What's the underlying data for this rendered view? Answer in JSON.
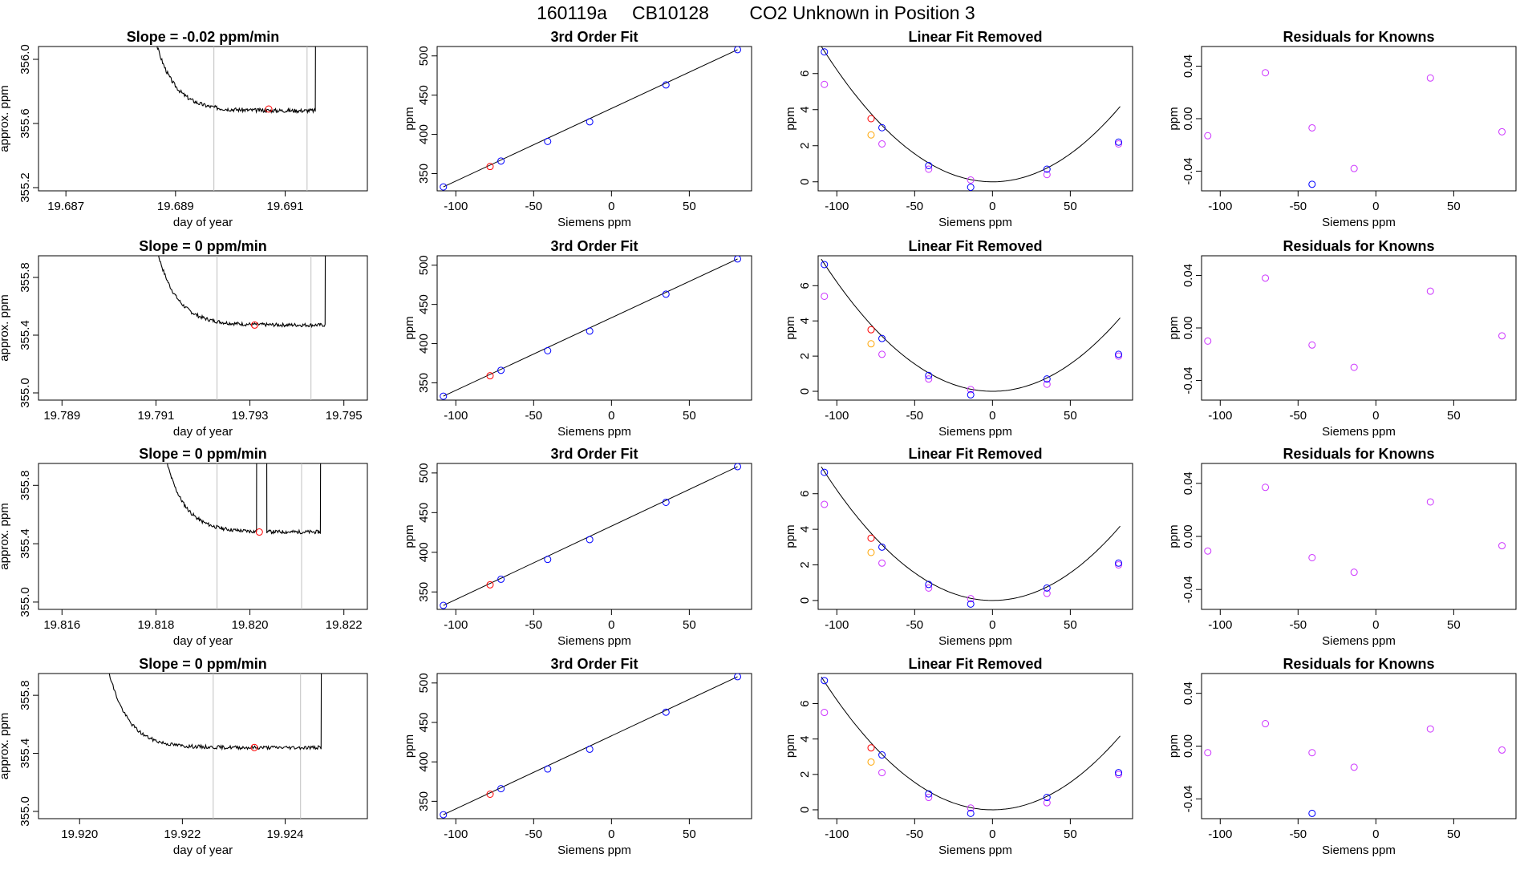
{
  "figure": {
    "title_parts": [
      "160119a",
      "CB10128",
      "CO2 Unknown in Position  3"
    ]
  },
  "chart_data": [
    {
      "type": "line",
      "row": 0,
      "panel": "trace",
      "title": "Slope =  -0.02  ppm/min",
      "xlabel": "day of year",
      "ylabel": "approx. ppm",
      "xlim": [
        19.6865,
        19.6925
      ],
      "ylim": [
        355.18,
        356.08
      ],
      "xticks": [
        19.687,
        19.689,
        19.691
      ],
      "xtick_labels": [
        "19.687",
        "19.689",
        "19.691"
      ],
      "yticks": [
        355.2,
        355.6,
        356.0
      ],
      "ytick_labels": [
        "355.2",
        "355.6",
        "356.0"
      ],
      "vlines": [
        19.6897,
        19.6914
      ],
      "marker": [
        19.6907,
        355.69
      ],
      "trace": {
        "t0": 19.68818,
        "t1": 19.69155,
        "plateau": 355.68,
        "init": 1.6,
        "tau": 0.00035,
        "final_rise": 3.5,
        "seed": 3
      }
    },
    {
      "type": "scatter",
      "row": 0,
      "panel": "fit",
      "title": "3rd Order Fit",
      "xlabel": "Siemens ppm",
      "ylabel": "ppm",
      "xlim": [
        -112,
        90
      ],
      "ylim": [
        328,
        512
      ],
      "xticks": [
        -100,
        -50,
        0,
        50
      ],
      "xtick_labels": [
        "-100",
        "-50",
        "0",
        "50"
      ],
      "yticks": [
        350,
        400,
        450,
        500
      ],
      "ytick_labels": [
        "350",
        "400",
        "450",
        "500"
      ],
      "knowns": {
        "x": [
          -108,
          -71,
          -41,
          -14,
          35,
          81
        ],
        "y": [
          333,
          366,
          391,
          416,
          463,
          508
        ]
      },
      "unknown": {
        "x": [
          -78
        ],
        "y": [
          359
        ]
      },
      "line": [
        [
          -108,
          333
        ],
        [
          81,
          508
        ]
      ]
    },
    {
      "type": "scatter",
      "row": 0,
      "panel": "linear_removed",
      "title": "Linear Fit Removed",
      "xlabel": "Siemens ppm",
      "ylabel": "ppm",
      "xlim": [
        -112,
        90
      ],
      "ylim": [
        -0.5,
        7.5
      ],
      "xticks": [
        -100,
        -50,
        0,
        50
      ],
      "xtick_labels": [
        "-100",
        "-50",
        "0",
        "50"
      ],
      "yticks": [
        0,
        2,
        4,
        6
      ],
      "ytick_labels": [
        "0",
        "2",
        "4",
        "6"
      ],
      "blue": {
        "x": [
          -108,
          -71,
          -41,
          -14,
          35,
          81
        ],
        "y": [
          7.2,
          3.0,
          0.9,
          -0.3,
          0.7,
          2.2
        ]
      },
      "magenta": {
        "x": [
          -108,
          -71,
          -41,
          -14,
          35,
          81
        ],
        "y": [
          5.4,
          2.1,
          0.7,
          0.1,
          0.4,
          2.1
        ]
      },
      "red": {
        "x": [
          -78
        ],
        "y": [
          3.5
        ]
      },
      "orange": {
        "x": [
          -78
        ],
        "y": [
          2.6
        ]
      },
      "curve": {
        "a": 0.000621,
        "b": 0.0,
        "c": 0.0
      }
    },
    {
      "type": "scatter",
      "row": 0,
      "panel": "residuals",
      "title": "Residuals for Knowns",
      "xlabel": "Siemens ppm",
      "ylabel": "ppm",
      "xlim": [
        -112,
        90
      ],
      "ylim": [
        -0.055,
        0.055
      ],
      "xticks": [
        -100,
        -50,
        0,
        50
      ],
      "xtick_labels": [
        "-100",
        "-50",
        "0",
        "50"
      ],
      "yticks": [
        -0.04,
        0.0,
        0.04
      ],
      "ytick_labels": [
        "-0.04",
        "0.00",
        "0.04"
      ],
      "magenta": {
        "x": [
          -108,
          -71,
          -41,
          -14,
          35,
          81
        ],
        "y": [
          -0.013,
          0.035,
          -0.007,
          -0.038,
          0.031,
          -0.01
        ]
      },
      "blue": {
        "x": [
          -41
        ],
        "y": [
          -0.05
        ]
      }
    },
    {
      "type": "line",
      "row": 1,
      "panel": "trace",
      "title": "Slope =  0  ppm/min",
      "xlabel": "day of year",
      "ylabel": "approx. ppm",
      "xlim": [
        19.7885,
        19.7955
      ],
      "ylim": [
        354.95,
        355.95
      ],
      "xticks": [
        19.789,
        19.791,
        19.793,
        19.795
      ],
      "xtick_labels": [
        "19.789",
        "19.791",
        "19.793",
        "19.795"
      ],
      "yticks": [
        355.0,
        355.4,
        355.8
      ],
      "ytick_labels": [
        "355.0",
        "355.4",
        "355.8"
      ],
      "vlines": [
        19.7923,
        19.7943
      ],
      "marker": [
        19.7931,
        355.47
      ],
      "trace": {
        "t0": 19.7905,
        "t1": 19.7946,
        "plateau": 355.47,
        "init": 1.8,
        "tau": 0.00042,
        "final_rise": 3.5,
        "seed": 7
      }
    },
    {
      "type": "scatter",
      "row": 1,
      "panel": "fit",
      "title": "3rd Order Fit",
      "xlabel": "Siemens ppm",
      "ylabel": "ppm",
      "xlim": [
        -112,
        90
      ],
      "ylim": [
        328,
        512
      ],
      "xticks": [
        -100,
        -50,
        0,
        50
      ],
      "xtick_labels": [
        "-100",
        "-50",
        "0",
        "50"
      ],
      "yticks": [
        350,
        400,
        450,
        500
      ],
      "ytick_labels": [
        "350",
        "400",
        "450",
        "500"
      ],
      "knowns": {
        "x": [
          -108,
          -71,
          -41,
          -14,
          35,
          81
        ],
        "y": [
          333,
          366,
          391,
          416,
          463,
          508
        ]
      },
      "unknown": {
        "x": [
          -78
        ],
        "y": [
          359
        ]
      },
      "line": [
        [
          -108,
          333
        ],
        [
          81,
          508
        ]
      ]
    },
    {
      "type": "scatter",
      "row": 1,
      "panel": "linear_removed",
      "title": "Linear Fit Removed",
      "xlabel": "Siemens ppm",
      "ylabel": "ppm",
      "xlim": [
        -112,
        90
      ],
      "ylim": [
        -0.5,
        7.7
      ],
      "xticks": [
        -100,
        -50,
        0,
        50
      ],
      "xtick_labels": [
        "-100",
        "-50",
        "0",
        "50"
      ],
      "yticks": [
        0,
        2,
        4,
        6
      ],
      "ytick_labels": [
        "0",
        "2",
        "4",
        "6"
      ],
      "blue": {
        "x": [
          -108,
          -71,
          -41,
          -14,
          35,
          81
        ],
        "y": [
          7.2,
          3.0,
          0.9,
          -0.2,
          0.7,
          2.1
        ]
      },
      "magenta": {
        "x": [
          -108,
          -71,
          -41,
          -14,
          35,
          81
        ],
        "y": [
          5.4,
          2.1,
          0.7,
          0.1,
          0.4,
          2.0
        ]
      },
      "red": {
        "x": [
          -78
        ],
        "y": [
          3.5
        ]
      },
      "orange": {
        "x": [
          -78
        ],
        "y": [
          2.7
        ]
      },
      "curve": {
        "a": 0.000621,
        "b": 0.0,
        "c": 0.0
      }
    },
    {
      "type": "scatter",
      "row": 1,
      "panel": "residuals",
      "title": "Residuals for Knowns",
      "xlabel": "Siemens ppm",
      "ylabel": "ppm",
      "xlim": [
        -112,
        90
      ],
      "ylim": [
        -0.055,
        0.055
      ],
      "xticks": [
        -100,
        -50,
        0,
        50
      ],
      "xtick_labels": [
        "-100",
        "-50",
        "0",
        "50"
      ],
      "yticks": [
        -0.04,
        0.0,
        0.04
      ],
      "ytick_labels": [
        "-0.04",
        "0.00",
        "0.04"
      ],
      "magenta": {
        "x": [
          -108,
          -71,
          -41,
          -14,
          35,
          81
        ],
        "y": [
          -0.01,
          0.038,
          -0.013,
          -0.03,
          0.028,
          -0.006
        ]
      },
      "blue": {
        "x": [],
        "y": []
      }
    },
    {
      "type": "line",
      "row": 2,
      "panel": "trace",
      "title": "Slope =  0  ppm/min",
      "xlabel": "day of year",
      "ylabel": "approx. ppm",
      "xlim": [
        19.8155,
        19.8225
      ],
      "ylim": [
        354.95,
        355.95
      ],
      "xticks": [
        19.816,
        19.818,
        19.82,
        19.822
      ],
      "xtick_labels": [
        "19.816",
        "19.818",
        "19.820",
        "19.822"
      ],
      "yticks": [
        355.0,
        355.4,
        355.8
      ],
      "ytick_labels": [
        "355.0",
        "355.4",
        "355.8"
      ],
      "vlines": [
        19.8193,
        19.8211
      ],
      "marker": [
        19.8202,
        355.48
      ],
      "trace": {
        "t0": 19.8177,
        "t1": 19.8215,
        "plateau": 355.48,
        "init": 1.8,
        "tau": 0.0004,
        "final_rise": 3.5,
        "seed": 11,
        "spike": [
          19.82015,
          19.82035
        ]
      }
    },
    {
      "type": "scatter",
      "row": 2,
      "panel": "fit",
      "title": "3rd Order Fit",
      "xlabel": "Siemens ppm",
      "ylabel": "ppm",
      "xlim": [
        -112,
        90
      ],
      "ylim": [
        328,
        512
      ],
      "xticks": [
        -100,
        -50,
        0,
        50
      ],
      "xtick_labels": [
        "-100",
        "-50",
        "0",
        "50"
      ],
      "yticks": [
        350,
        400,
        450,
        500
      ],
      "ytick_labels": [
        "350",
        "400",
        "450",
        "500"
      ],
      "knowns": {
        "x": [
          -108,
          -71,
          -41,
          -14,
          35,
          81
        ],
        "y": [
          333,
          366,
          391,
          416,
          463,
          508
        ]
      },
      "unknown": {
        "x": [
          -78
        ],
        "y": [
          359
        ]
      },
      "line": [
        [
          -108,
          333
        ],
        [
          81,
          508
        ]
      ]
    },
    {
      "type": "scatter",
      "row": 2,
      "panel": "linear_removed",
      "title": "Linear Fit Removed",
      "xlabel": "Siemens ppm",
      "ylabel": "ppm",
      "xlim": [
        -112,
        90
      ],
      "ylim": [
        -0.5,
        7.7
      ],
      "xticks": [
        -100,
        -50,
        0,
        50
      ],
      "xtick_labels": [
        "-100",
        "-50",
        "0",
        "50"
      ],
      "yticks": [
        0,
        2,
        4,
        6
      ],
      "ytick_labels": [
        "0",
        "2",
        "4",
        "6"
      ],
      "blue": {
        "x": [
          -108,
          -71,
          -41,
          -14,
          35,
          81
        ],
        "y": [
          7.2,
          3.0,
          0.9,
          -0.2,
          0.7,
          2.1
        ]
      },
      "magenta": {
        "x": [
          -108,
          -71,
          -41,
          -14,
          35,
          81
        ],
        "y": [
          5.4,
          2.1,
          0.7,
          0.1,
          0.4,
          2.0
        ]
      },
      "red": {
        "x": [
          -78
        ],
        "y": [
          3.5
        ]
      },
      "orange": {
        "x": [
          -78
        ],
        "y": [
          2.7
        ]
      },
      "curve": {
        "a": 0.000621,
        "b": 0.0,
        "c": 0.0
      }
    },
    {
      "type": "scatter",
      "row": 2,
      "panel": "residuals",
      "title": "Residuals for Knowns",
      "xlabel": "Siemens ppm",
      "ylabel": "ppm",
      "xlim": [
        -112,
        90
      ],
      "ylim": [
        -0.055,
        0.055
      ],
      "xticks": [
        -100,
        -50,
        0,
        50
      ],
      "xtick_labels": [
        "-100",
        "-50",
        "0",
        "50"
      ],
      "yticks": [
        -0.04,
        0.0,
        0.04
      ],
      "ytick_labels": [
        "-0.04",
        "0.00",
        "0.04"
      ],
      "magenta": {
        "x": [
          -108,
          -71,
          -41,
          -14,
          35,
          81
        ],
        "y": [
          -0.011,
          0.037,
          -0.016,
          -0.027,
          0.026,
          -0.007
        ]
      },
      "blue": {
        "x": [],
        "y": []
      }
    },
    {
      "type": "line",
      "row": 3,
      "panel": "trace",
      "title": "Slope =  0  ppm/min",
      "xlabel": "day of year",
      "ylabel": "approx. ppm",
      "xlim": [
        19.9192,
        19.9256
      ],
      "ylim": [
        354.95,
        355.95
      ],
      "xticks": [
        19.92,
        19.922,
        19.924
      ],
      "xtick_labels": [
        "19.920",
        "19.922",
        "19.924"
      ],
      "yticks": [
        355.0,
        355.4,
        355.8
      ],
      "ytick_labels": [
        "355.0",
        "355.4",
        "355.8"
      ],
      "vlines": [
        19.9226,
        19.9243
      ],
      "marker": [
        19.9234,
        355.44
      ],
      "trace": {
        "t0": 19.9201,
        "t1": 19.9247,
        "plateau": 355.44,
        "init": 1.8,
        "tau": 0.00038,
        "final_rise": 3.5,
        "seed": 19
      }
    },
    {
      "type": "scatter",
      "row": 3,
      "panel": "fit",
      "title": "3rd Order Fit",
      "xlabel": "Siemens ppm",
      "ylabel": "ppm",
      "xlim": [
        -112,
        90
      ],
      "ylim": [
        328,
        512
      ],
      "xticks": [
        -100,
        -50,
        0,
        50
      ],
      "xtick_labels": [
        "-100",
        "-50",
        "0",
        "50"
      ],
      "yticks": [
        350,
        400,
        450,
        500
      ],
      "ytick_labels": [
        "350",
        "400",
        "450",
        "500"
      ],
      "knowns": {
        "x": [
          -108,
          -71,
          -41,
          -14,
          35,
          81
        ],
        "y": [
          333,
          366,
          391,
          416,
          463,
          508
        ]
      },
      "unknown": {
        "x": [
          -78
        ],
        "y": [
          359
        ]
      },
      "line": [
        [
          -108,
          333
        ],
        [
          81,
          508
        ]
      ]
    },
    {
      "type": "scatter",
      "row": 3,
      "panel": "linear_removed",
      "title": "Linear Fit Removed",
      "xlabel": "Siemens ppm",
      "ylabel": "ppm",
      "xlim": [
        -112,
        90
      ],
      "ylim": [
        -0.5,
        7.7
      ],
      "xticks": [
        -100,
        -50,
        0,
        50
      ],
      "xtick_labels": [
        "-100",
        "-50",
        "0",
        "50"
      ],
      "yticks": [
        0,
        2,
        4,
        6
      ],
      "ytick_labels": [
        "0",
        "2",
        "4",
        "6"
      ],
      "blue": {
        "x": [
          -108,
          -71,
          -41,
          -14,
          35,
          81
        ],
        "y": [
          7.3,
          3.1,
          0.9,
          -0.2,
          0.7,
          2.1
        ]
      },
      "magenta": {
        "x": [
          -108,
          -71,
          -41,
          -14,
          35,
          81
        ],
        "y": [
          5.5,
          2.1,
          0.7,
          0.1,
          0.4,
          2.0
        ]
      },
      "red": {
        "x": [
          -78
        ],
        "y": [
          3.5
        ]
      },
      "orange": {
        "x": [
          -78
        ],
        "y": [
          2.7
        ]
      },
      "curve": {
        "a": 0.000621,
        "b": 0.0,
        "c": 0.0
      }
    },
    {
      "type": "scatter",
      "row": 3,
      "panel": "residuals",
      "title": "Residuals for Knowns",
      "xlabel": "Siemens ppm",
      "ylabel": "ppm",
      "xlim": [
        -112,
        90
      ],
      "ylim": [
        -0.055,
        0.055
      ],
      "xticks": [
        -100,
        -50,
        0,
        50
      ],
      "xtick_labels": [
        "-100",
        "-50",
        "0",
        "50"
      ],
      "yticks": [
        -0.04,
        0.0,
        0.04
      ],
      "ytick_labels": [
        "-0.04",
        "0.00",
        "0.04"
      ],
      "magenta": {
        "x": [
          -108,
          -71,
          -41,
          -14,
          35,
          81
        ],
        "y": [
          -0.005,
          0.017,
          -0.005,
          -0.016,
          0.013,
          -0.003
        ]
      },
      "blue": {
        "x": [
          -41
        ],
        "y": [
          -0.051
        ]
      }
    }
  ],
  "colors": {
    "blue": "#0000ff",
    "magenta": "#cc33ff",
    "red": "#ff0000",
    "orange": "#ffa500",
    "vline": "#c0c0c0",
    "ink": "#000000"
  }
}
